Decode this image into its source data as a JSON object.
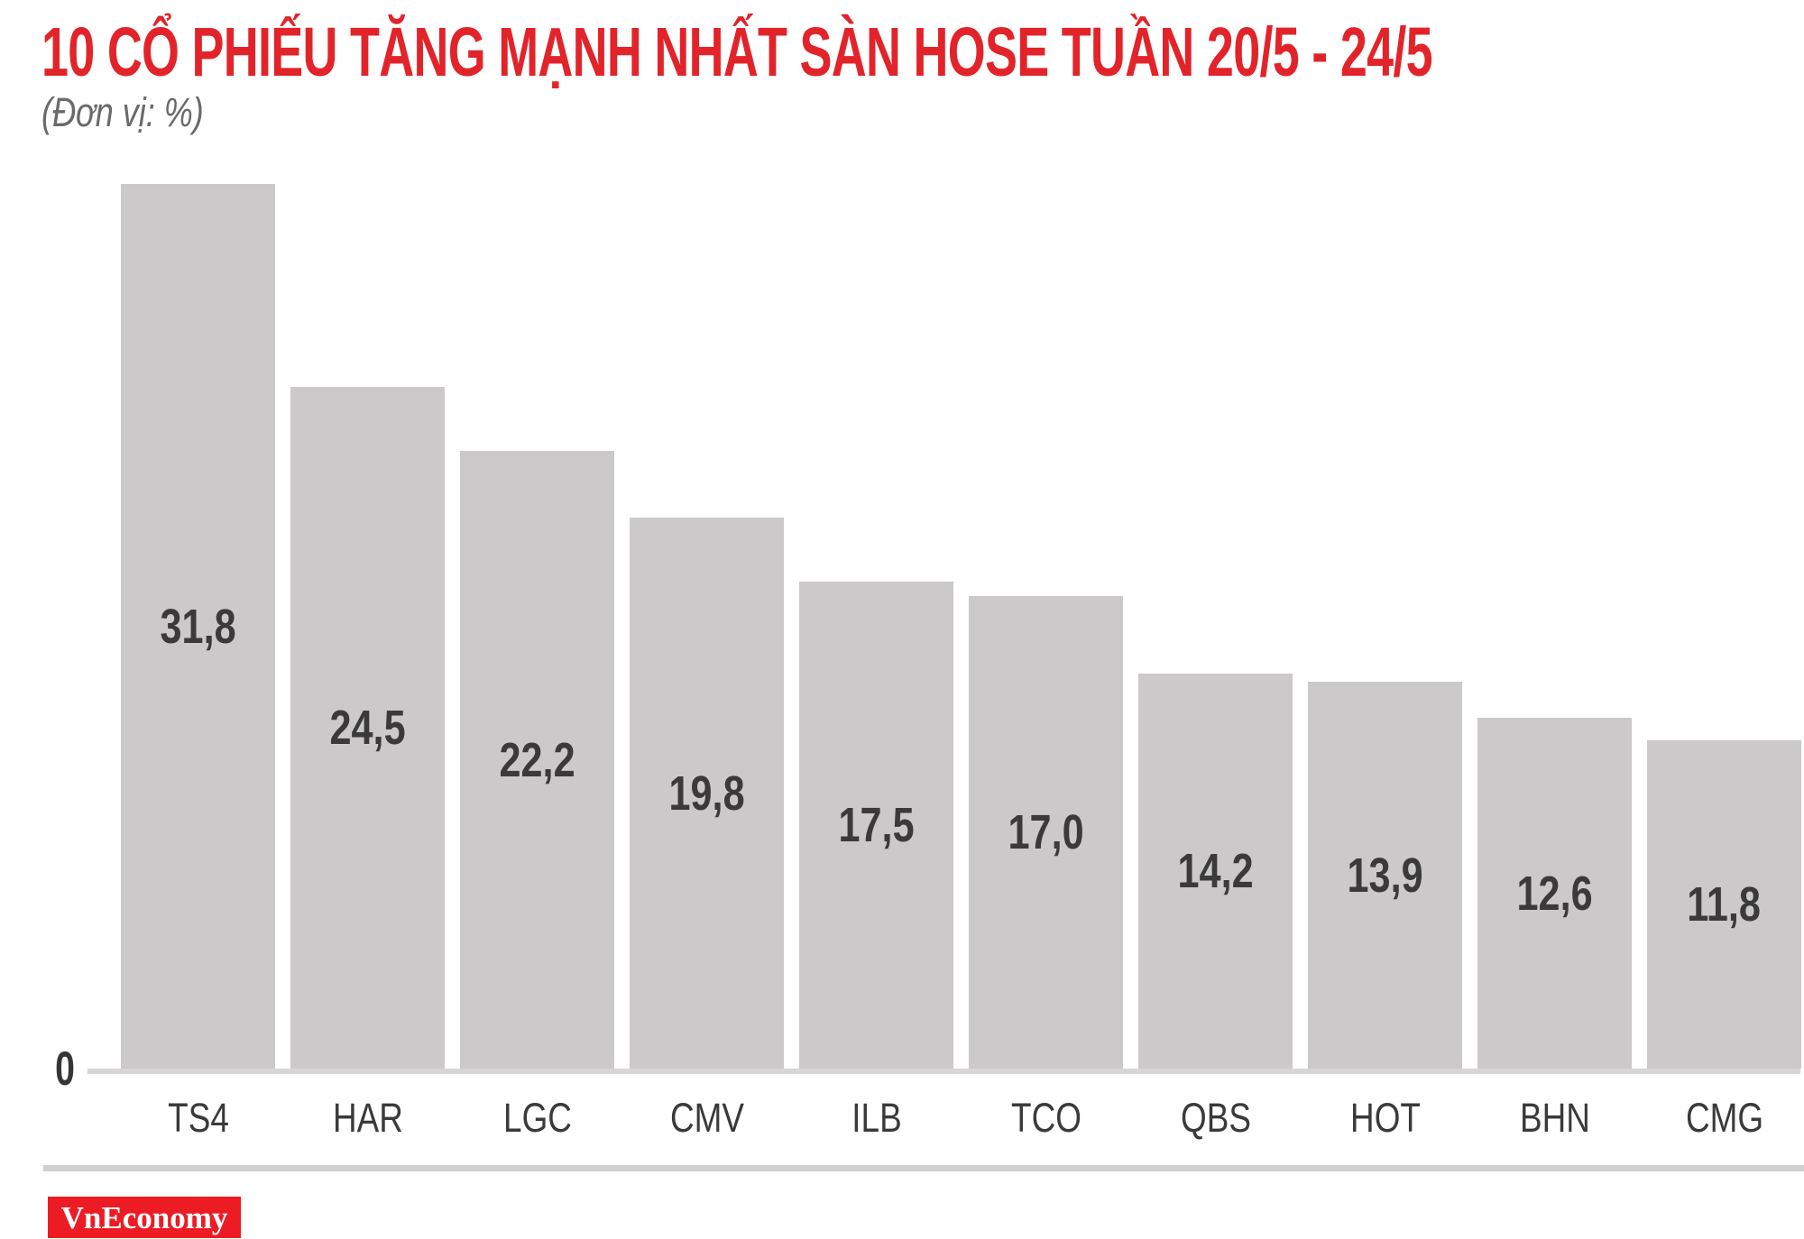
{
  "title": "10 CỔ PHIẾU TĂNG MẠNH NHẤT SÀN HOSE TUẦN 20/5 - 24/5",
  "subtitle": "(Đơn vị: %)",
  "axis": {
    "zero_label": "0"
  },
  "logo": {
    "text": "VnEconomy"
  },
  "colors": {
    "title_red": "#e2242a",
    "bar_gray": "#cbc9c9",
    "text_dark": "#3a3a3a",
    "logo_red": "#ed1c24"
  },
  "chart_data": {
    "type": "bar",
    "title": "10 CỔ PHIẾU TĂNG MẠNH NHẤT SÀN HOSE TUẦN 20/5 - 24/5",
    "unit_label": "(Đơn vị: %)",
    "categories": [
      "TS4",
      "HAR",
      "LGC",
      "CMV",
      "ILB",
      "TCO",
      "QBS",
      "HOT",
      "BHN",
      "CMG"
    ],
    "values": [
      31.8,
      24.5,
      22.2,
      19.8,
      17.5,
      17.0,
      14.2,
      13.9,
      12.6,
      11.8
    ],
    "value_labels": [
      "31,8",
      "24,5",
      "22,2",
      "19,8",
      "17,5",
      "17,0",
      "14,2",
      "13,9",
      "12,6",
      "11,8"
    ],
    "ylabel": "%",
    "ylim": [
      0,
      32.5
    ],
    "grid": false,
    "legend": "none",
    "bar_color": "#cbc9c9",
    "value_label_position": "centered-inside-bar",
    "source": "VnEconomy"
  }
}
